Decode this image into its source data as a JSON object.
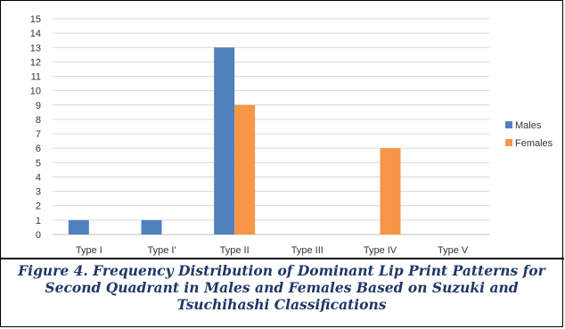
{
  "chart_data": {
    "type": "bar",
    "title": "",
    "xlabel": "",
    "ylabel": "",
    "ylim": [
      0,
      15
    ],
    "yticks": [
      0,
      1,
      2,
      3,
      4,
      5,
      6,
      7,
      8,
      9,
      10,
      11,
      12,
      13,
      14,
      15
    ],
    "grid": true,
    "legend_position": "right",
    "categories": [
      "Type I",
      "Type I'",
      "Type II",
      "Type III",
      "Type IV",
      "Type V"
    ],
    "series": [
      {
        "name": "Males",
        "color": "#4f81bd",
        "values": [
          1,
          1,
          13,
          0,
          0,
          0
        ]
      },
      {
        "name": "Females",
        "color": "#f79646",
        "values": [
          0,
          0,
          9,
          0,
          6,
          0
        ]
      }
    ]
  },
  "caption": {
    "line1": "Figure 4. Frequency Distribution of Dominant Lip Print Patterns for",
    "line2": "Second Quadrant in Males and Females Based on Suzuki and",
    "line3": "Tsuchihashi Classifications"
  }
}
